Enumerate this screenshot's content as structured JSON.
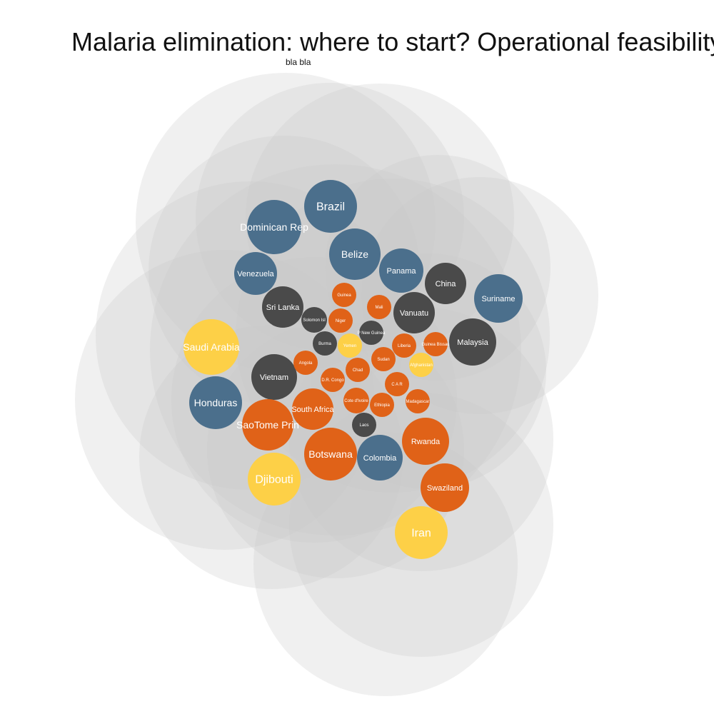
{
  "title": "Malaria elimination: where to start? Operational feasibility",
  "subtitle": "bla bla",
  "colors": {
    "blue": "#4b6f8c",
    "dark": "#4a4a4a",
    "orange": "#e06218",
    "yellow": "#fdd047",
    "halo": "#c8c8c8",
    "label": "#ffffff"
  },
  "chart_data": {
    "type": "bubble",
    "title": "Malaria elimination: where to start? Operational feasibility",
    "subtitle": "bla bla",
    "groups": [
      "blue",
      "dark",
      "orange",
      "yellow"
    ],
    "bubbles": [
      {
        "name": "Brazil",
        "group": "blue",
        "size": 37
      },
      {
        "name": "Dominican Rep",
        "group": "blue",
        "size": 38
      },
      {
        "name": "Belize",
        "group": "blue",
        "size": 36
      },
      {
        "name": "Venezuela",
        "group": "blue",
        "size": 30
      },
      {
        "name": "Panama",
        "group": "blue",
        "size": 31
      },
      {
        "name": "Suriname",
        "group": "blue",
        "size": 34
      },
      {
        "name": "Honduras",
        "group": "blue",
        "size": 37
      },
      {
        "name": "Colombia",
        "group": "blue",
        "size": 32
      },
      {
        "name": "China",
        "group": "dark",
        "size": 29
      },
      {
        "name": "Sri Lanka",
        "group": "dark",
        "size": 29
      },
      {
        "name": "Vanuatu",
        "group": "dark",
        "size": 29
      },
      {
        "name": "Malaysia",
        "group": "dark",
        "size": 33
      },
      {
        "name": "Vietnam",
        "group": "dark",
        "size": 32
      },
      {
        "name": "Solomon Isl",
        "group": "dark",
        "size": 18
      },
      {
        "name": "P New Guinea",
        "group": "dark",
        "size": 17
      },
      {
        "name": "Burma",
        "group": "dark",
        "size": 17
      },
      {
        "name": "Laos",
        "group": "dark",
        "size": 17
      },
      {
        "name": "Guinea",
        "group": "orange",
        "size": 17
      },
      {
        "name": "Mali",
        "group": "orange",
        "size": 17
      },
      {
        "name": "Niger",
        "group": "orange",
        "size": 17
      },
      {
        "name": "Liberia",
        "group": "orange",
        "size": 17
      },
      {
        "name": "Guinea Bissau",
        "group": "orange",
        "size": 17
      },
      {
        "name": "Angola",
        "group": "orange",
        "size": 17
      },
      {
        "name": "Chad",
        "group": "orange",
        "size": 17
      },
      {
        "name": "Sudan",
        "group": "orange",
        "size": 17
      },
      {
        "name": "D.R. Congo",
        "group": "orange",
        "size": 17
      },
      {
        "name": "C A R",
        "group": "orange",
        "size": 17
      },
      {
        "name": "Cote d'Ivoire",
        "group": "orange",
        "size": 18
      },
      {
        "name": "Madagascar",
        "group": "orange",
        "size": 17
      },
      {
        "name": "Ethiopia",
        "group": "orange",
        "size": 17
      },
      {
        "name": "South Africa",
        "group": "orange",
        "size": 29
      },
      {
        "name": "SaoTome Prin",
        "group": "orange",
        "size": 36
      },
      {
        "name": "Botswana",
        "group": "orange",
        "size": 37
      },
      {
        "name": "Rwanda",
        "group": "orange",
        "size": 33
      },
      {
        "name": "Swaziland",
        "group": "orange",
        "size": 34
      },
      {
        "name": "Saudi Arabia",
        "group": "yellow",
        "size": 39
      },
      {
        "name": "Yemen",
        "group": "yellow",
        "size": 17
      },
      {
        "name": "Afghanistan",
        "group": "yellow",
        "size": 17
      },
      {
        "name": "Djibouti",
        "group": "yellow",
        "size": 37
      },
      {
        "name": "Iran",
        "group": "yellow",
        "size": 37
      }
    ],
    "legend": "none",
    "grid": false
  }
}
